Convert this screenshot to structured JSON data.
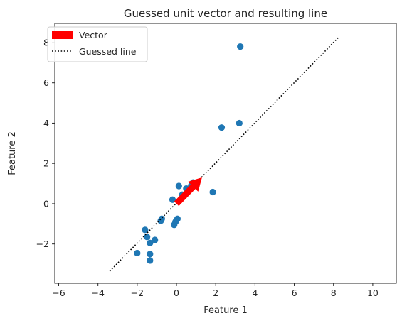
{
  "chart_data": {
    "type": "scatter",
    "title": "Guessed unit vector and resulting line",
    "xlabel": "Feature 1",
    "ylabel": "Feature 2",
    "xlim": [
      -6.2,
      11.2
    ],
    "ylim": [
      -3.95,
      8.95
    ],
    "xticks": [
      -6,
      -4,
      -2,
      0,
      2,
      4,
      6,
      8,
      10
    ],
    "yticks": [
      -2,
      0,
      2,
      4,
      6,
      8
    ],
    "grid": false,
    "legend_position": "top-left",
    "colors": {
      "points": "#1f77b4",
      "vector": "#ff0000",
      "line": "#000000",
      "frame": "#262626"
    },
    "series": [
      {
        "type": "scatter",
        "points": [
          {
            "x": 3.25,
            "y": 7.8
          },
          {
            "x": 3.2,
            "y": 4.0
          },
          {
            "x": 2.3,
            "y": 3.78
          },
          {
            "x": 1.85,
            "y": 0.58
          },
          {
            "x": 0.85,
            "y": 1.05
          },
          {
            "x": 0.75,
            "y": 0.9
          },
          {
            "x": 0.5,
            "y": 0.75
          },
          {
            "x": 0.3,
            "y": 0.45
          },
          {
            "x": 0.12,
            "y": 0.88
          },
          {
            "x": -0.2,
            "y": 0.2
          },
          {
            "x": -0.75,
            "y": -0.75
          },
          {
            "x": -0.8,
            "y": -0.85
          },
          {
            "x": 0.05,
            "y": -0.75
          },
          {
            "x": -0.05,
            "y": -0.9
          },
          {
            "x": -0.12,
            "y": -1.05
          },
          {
            "x": -1.1,
            "y": -1.8
          },
          {
            "x": -1.35,
            "y": -1.95
          },
          {
            "x": -1.5,
            "y": -1.65
          },
          {
            "x": -1.6,
            "y": -1.3
          },
          {
            "x": -1.35,
            "y": -2.5
          },
          {
            "x": -1.35,
            "y": -2.82
          },
          {
            "x": -2.0,
            "y": -2.45
          }
        ]
      },
      {
        "name": "Vector",
        "type": "arrow",
        "from": {
          "x": 0.0,
          "y": 0.0
        },
        "to": {
          "x": 1.3,
          "y": 1.3
        }
      },
      {
        "name": "Guessed line",
        "type": "line",
        "style": "dotted",
        "from": {
          "x": -3.4,
          "y": -3.35
        },
        "to": {
          "x": 8.3,
          "y": 8.3
        }
      }
    ]
  }
}
